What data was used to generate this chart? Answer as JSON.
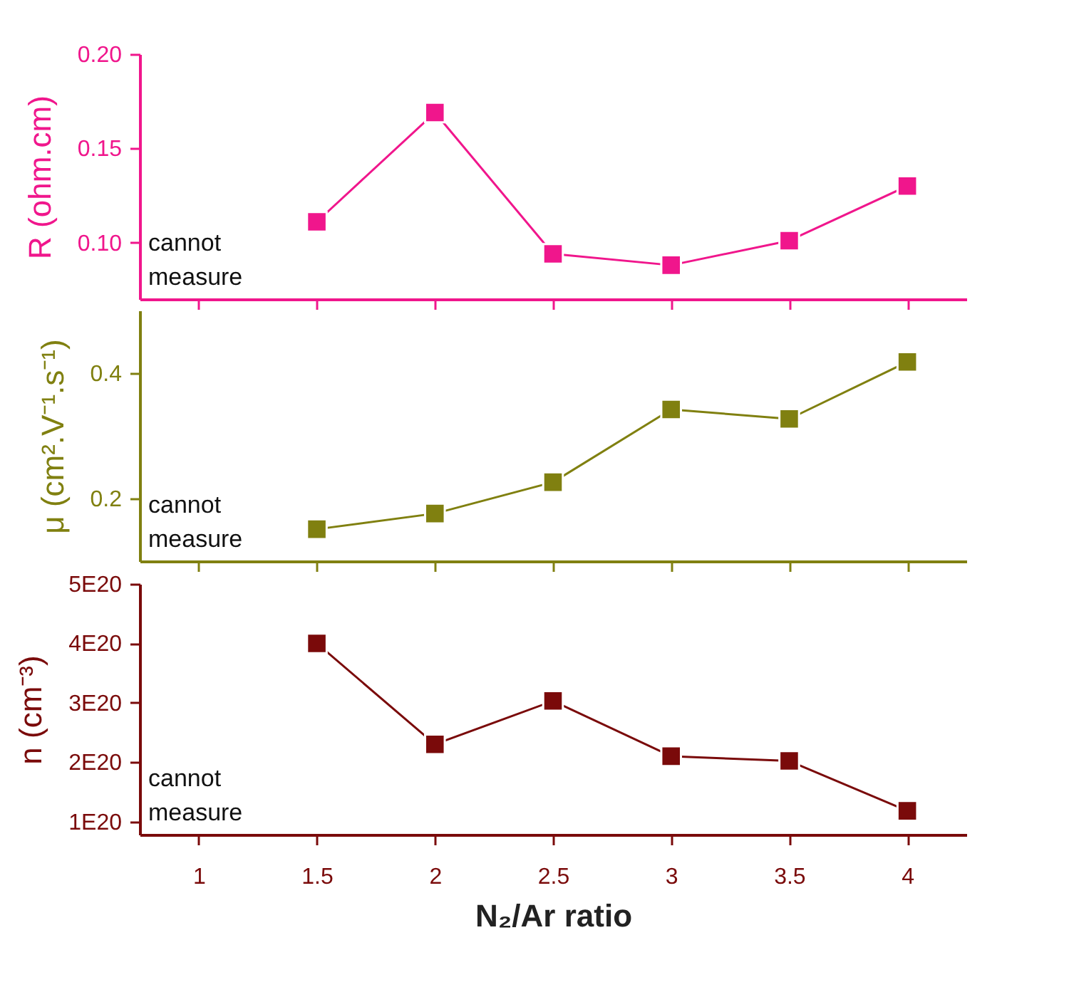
{
  "chart_data": [
    {
      "type": "line",
      "x": [
        1.5,
        2,
        2.5,
        3,
        3.5,
        4
      ],
      "ylabel": "R (ohm.cm)",
      "marker": "square",
      "tick_labels": "y",
      "xlim": [
        0.75,
        4.25
      ],
      "xticks": [
        1,
        1.5,
        2,
        2.5,
        3,
        3.5,
        4
      ],
      "ylim": [
        0.07,
        0.2
      ],
      "yticks": [
        {
          "value": 0.1,
          "label": "0.10"
        },
        {
          "value": 0.15,
          "label": "0.15"
        },
        {
          "value": 0.2,
          "label": "0.20"
        }
      ],
      "annotations": [
        "cannot measure"
      ],
      "series": [
        {
          "color": "#f0168c",
          "values": [
            0.111,
            0.169,
            0.094,
            0.088,
            0.101,
            0.13
          ]
        }
      ]
    },
    {
      "type": "line",
      "x": [
        1.5,
        2,
        2.5,
        3,
        3.5,
        4
      ],
      "ylabel": "μ (cm².V⁻¹.s⁻¹)",
      "marker": "square",
      "tick_labels": "y",
      "xlim": [
        0.75,
        4.25
      ],
      "xticks": [
        1,
        1.5,
        2,
        2.5,
        3,
        3.5,
        4
      ],
      "ylim": [
        0.1,
        0.5
      ],
      "yticks": [
        0.2,
        0.4
      ],
      "annotations": [
        "cannot measure"
      ],
      "series": [
        {
          "color": "#808010",
          "values": [
            0.151,
            0.176,
            0.226,
            0.342,
            0.327,
            0.418
          ]
        }
      ]
    },
    {
      "type": "line",
      "x": [
        1.5,
        2,
        2.5,
        3,
        3.5,
        4
      ],
      "ylabel": "n (cm⁻³)",
      "xlabel": "N₂/Ar ratio",
      "marker": "square",
      "xlim": [
        0.75,
        4.25
      ],
      "xticks": [
        1,
        1.5,
        2,
        2.5,
        3,
        3.5,
        4
      ],
      "ylim": [
        7.8e+19,
        5e+20
      ],
      "yticks": [
        {
          "value": 1e+20,
          "label": "1E20"
        },
        {
          "value": 2e+20,
          "label": "2E20"
        },
        {
          "value": 3e+20,
          "label": "3E20"
        },
        {
          "value": 4e+20,
          "label": "4E20"
        },
        {
          "value": 5e+20,
          "label": "5E20"
        }
      ],
      "annotations": [
        "cannot measure"
      ],
      "series": [
        {
          "color": "#7a0a0a",
          "values": [
            4e+20,
            2.3e+20,
            3.03e+20,
            2.1e+20,
            2.02e+20,
            1.18e+20
          ]
        }
      ]
    }
  ]
}
